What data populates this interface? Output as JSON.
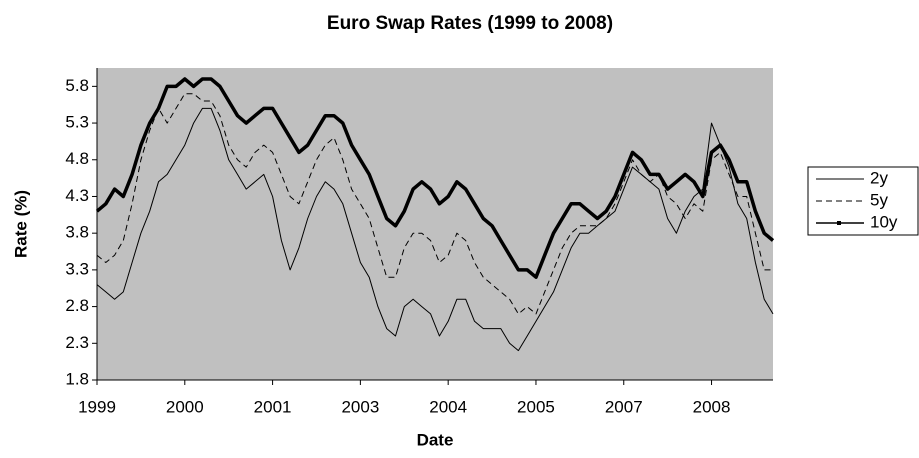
{
  "chart_data": {
    "type": "line",
    "title": "Euro Swap Rates (1999 to 2008)",
    "x_label": "Date",
    "y_label": "Rate (%)",
    "categories": [
      "1999",
      null,
      null,
      null,
      null,
      null,
      null,
      null,
      null,
      null,
      "2000",
      null,
      null,
      null,
      null,
      null,
      null,
      null,
      null,
      null,
      "2001",
      null,
      null,
      null,
      null,
      null,
      null,
      null,
      null,
      null,
      "2003",
      null,
      null,
      null,
      null,
      null,
      null,
      null,
      null,
      null,
      "2004",
      null,
      null,
      null,
      null,
      null,
      null,
      null,
      null,
      null,
      "2005",
      null,
      null,
      null,
      null,
      null,
      null,
      null,
      null,
      null,
      "2007",
      null,
      null,
      null,
      null,
      null,
      null,
      null,
      null,
      null,
      "2008",
      null,
      null,
      null,
      null,
      null,
      null,
      null
    ],
    "ylim": [
      1.8,
      6.05
    ],
    "yticks": [
      1.8,
      2.3,
      2.8,
      3.3,
      3.8,
      4.3,
      4.8,
      5.3,
      5.8
    ],
    "background": "#c0c0c0",
    "legend": "right",
    "series": [
      {
        "name": "2y",
        "color": "#000000",
        "style": "solid",
        "line_width": 1,
        "values": [
          3.1,
          3.0,
          2.9,
          3.0,
          3.4,
          3.8,
          4.1,
          4.5,
          4.6,
          4.8,
          5.0,
          5.3,
          5.5,
          5.5,
          5.2,
          4.8,
          4.6,
          4.4,
          4.5,
          4.6,
          4.3,
          3.7,
          3.3,
          3.6,
          4.0,
          4.3,
          4.5,
          4.4,
          4.2,
          3.8,
          3.4,
          3.2,
          2.8,
          2.5,
          2.4,
          2.8,
          2.9,
          2.8,
          2.7,
          2.4,
          2.6,
          2.9,
          2.9,
          2.6,
          2.5,
          2.5,
          2.5,
          2.3,
          2.2,
          2.4,
          2.6,
          2.8,
          3.0,
          3.3,
          3.6,
          3.8,
          3.8,
          3.9,
          4.0,
          4.1,
          4.4,
          4.7,
          4.6,
          4.5,
          4.4,
          4.0,
          3.8,
          4.1,
          4.3,
          4.4,
          5.3,
          5.0,
          4.7,
          4.2,
          4.0,
          3.4,
          2.9,
          2.7
        ]
      },
      {
        "name": "5y",
        "color": "#000000",
        "style": "dashed",
        "line_width": 1,
        "values": [
          3.5,
          3.4,
          3.5,
          3.7,
          4.2,
          4.8,
          5.2,
          5.5,
          5.3,
          5.5,
          5.7,
          5.7,
          5.6,
          5.6,
          5.4,
          5.0,
          4.8,
          4.7,
          4.9,
          5.0,
          4.9,
          4.6,
          4.3,
          4.2,
          4.5,
          4.8,
          5.0,
          5.1,
          4.8,
          4.4,
          4.2,
          4.0,
          3.6,
          3.2,
          3.2,
          3.6,
          3.8,
          3.8,
          3.7,
          3.4,
          3.5,
          3.8,
          3.7,
          3.4,
          3.2,
          3.1,
          3.0,
          2.9,
          2.7,
          2.8,
          2.7,
          3.0,
          3.3,
          3.6,
          3.8,
          3.9,
          3.9,
          3.9,
          4.0,
          4.2,
          4.5,
          4.8,
          4.6,
          4.5,
          4.6,
          4.3,
          4.2,
          4.0,
          4.2,
          4.1,
          4.8,
          4.9,
          4.6,
          4.3,
          4.3,
          3.8,
          3.3,
          3.3
        ]
      },
      {
        "name": "10y",
        "color": "#000000",
        "style": "solid",
        "line_width": 3.5,
        "values": [
          4.1,
          4.2,
          4.4,
          4.3,
          4.6,
          5.0,
          5.3,
          5.5,
          5.8,
          5.8,
          5.9,
          5.8,
          5.9,
          5.9,
          5.8,
          5.6,
          5.4,
          5.3,
          5.4,
          5.5,
          5.5,
          5.3,
          5.1,
          4.9,
          5.0,
          5.2,
          5.4,
          5.4,
          5.3,
          5.0,
          4.8,
          4.6,
          4.3,
          4.0,
          3.9,
          4.1,
          4.4,
          4.5,
          4.4,
          4.2,
          4.3,
          4.5,
          4.4,
          4.2,
          4.0,
          3.9,
          3.7,
          3.5,
          3.3,
          3.3,
          3.2,
          3.5,
          3.8,
          4.0,
          4.2,
          4.2,
          4.1,
          4.0,
          4.1,
          4.3,
          4.6,
          4.9,
          4.8,
          4.6,
          4.6,
          4.4,
          4.5,
          4.6,
          4.5,
          4.3,
          4.9,
          5.0,
          4.8,
          4.5,
          4.5,
          4.1,
          3.8,
          3.7
        ]
      }
    ]
  }
}
